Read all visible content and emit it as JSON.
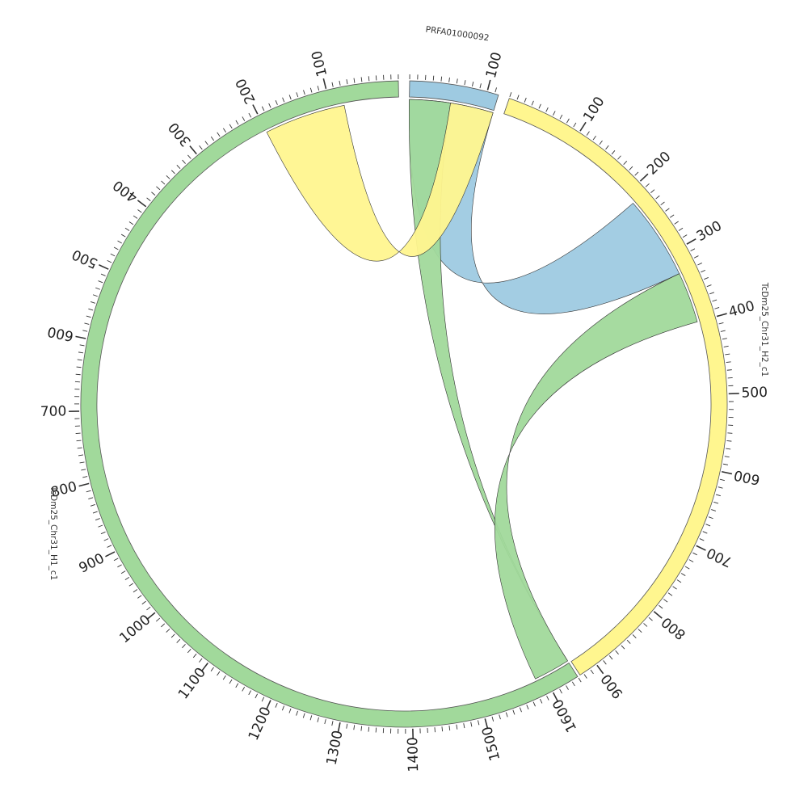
{
  "chromosomes": [
    {
      "id": "prfa",
      "label": "PRFA01000092",
      "length": 115,
      "color": "#9ecae1",
      "tick_labels": [
        "100"
      ]
    },
    {
      "id": "h2",
      "label": "TcDm25_Chr31_H2_c1",
      "length": 925,
      "color": "#fff68f",
      "tick_labels": [
        "100",
        "200",
        "300",
        "400",
        "500",
        "600",
        "700",
        "800",
        "900"
      ]
    },
    {
      "id": "h1",
      "label": "TcDm25_Chr31_H1_c1",
      "length": 1640,
      "color": "#a1d99b",
      "tick_labels": [
        "100",
        "200",
        "300",
        "400",
        "500",
        "600",
        "700",
        "800",
        "900",
        "1000",
        "1100",
        "1200",
        "1300",
        "1400",
        "1500",
        "1600"
      ]
    }
  ],
  "links": [
    {
      "from": {
        "chr": "prfa",
        "start": 0,
        "end": 115
      },
      "to": {
        "chr": "h2",
        "start": 215,
        "end": 330
      },
      "color": "#9ecae1"
    },
    {
      "from": {
        "chr": "prfa",
        "start": 0,
        "end": 56
      },
      "to": {
        "chr": "h1",
        "start": 1640,
        "end": 1640
      },
      "color": "#a1d99b"
    },
    {
      "from": {
        "chr": "h1",
        "start": 1586,
        "end": 1640
      },
      "to": {
        "chr": "h2",
        "start": 330,
        "end": 400
      },
      "color": "#a1d99b"
    },
    {
      "from": {
        "chr": "prfa",
        "start": 56,
        "end": 115
      },
      "to": {
        "chr": "h1",
        "start": 80,
        "end": 200
      },
      "color": "#fff68f"
    }
  ]
}
